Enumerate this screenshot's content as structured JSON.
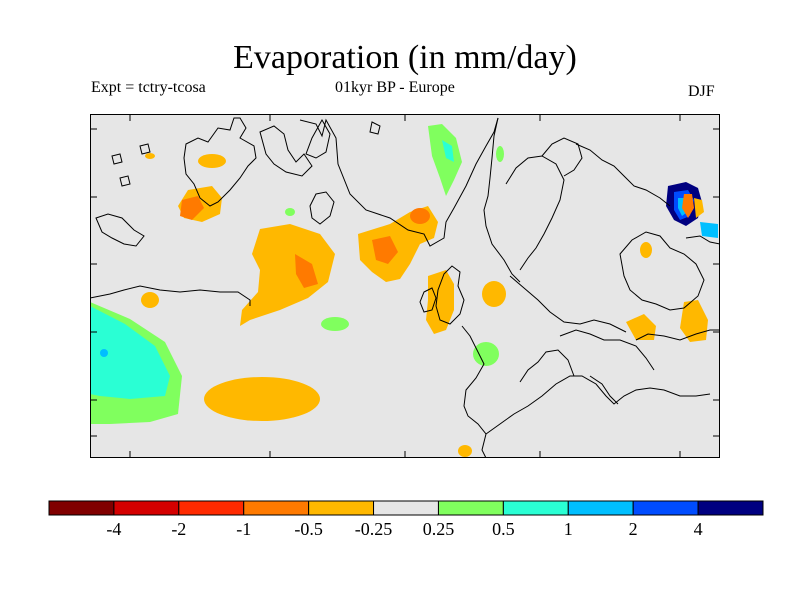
{
  "title": "Evaporation (in mm/day)",
  "experiment": "Expt = tctry-tcosa",
  "period_region": "01kyr BP - Europe",
  "season": "DJF",
  "colorbar": {
    "colors": [
      "#800000",
      "#d40000",
      "#ff2a00",
      "#ff7a00",
      "#ffb800",
      "#e6e6e6",
      "#80ff5e",
      "#2affd4",
      "#00bfff",
      "#004cff",
      "#000080"
    ],
    "labels": [
      "-4",
      "-2",
      "-1",
      "-0.5",
      "-0.25",
      "0.25",
      "0.5",
      "1",
      "2",
      "4"
    ]
  },
  "colors": {
    "land_background": "#e6e6e6",
    "coastline": "#000000",
    "neg_weak": "#ffb800",
    "neg_mid": "#ff7a00",
    "pos_weak": "#80ff5e",
    "pos_mid": "#2affd4",
    "pos_strong": "#00bfff",
    "pos_very_strong": "#000080"
  }
}
